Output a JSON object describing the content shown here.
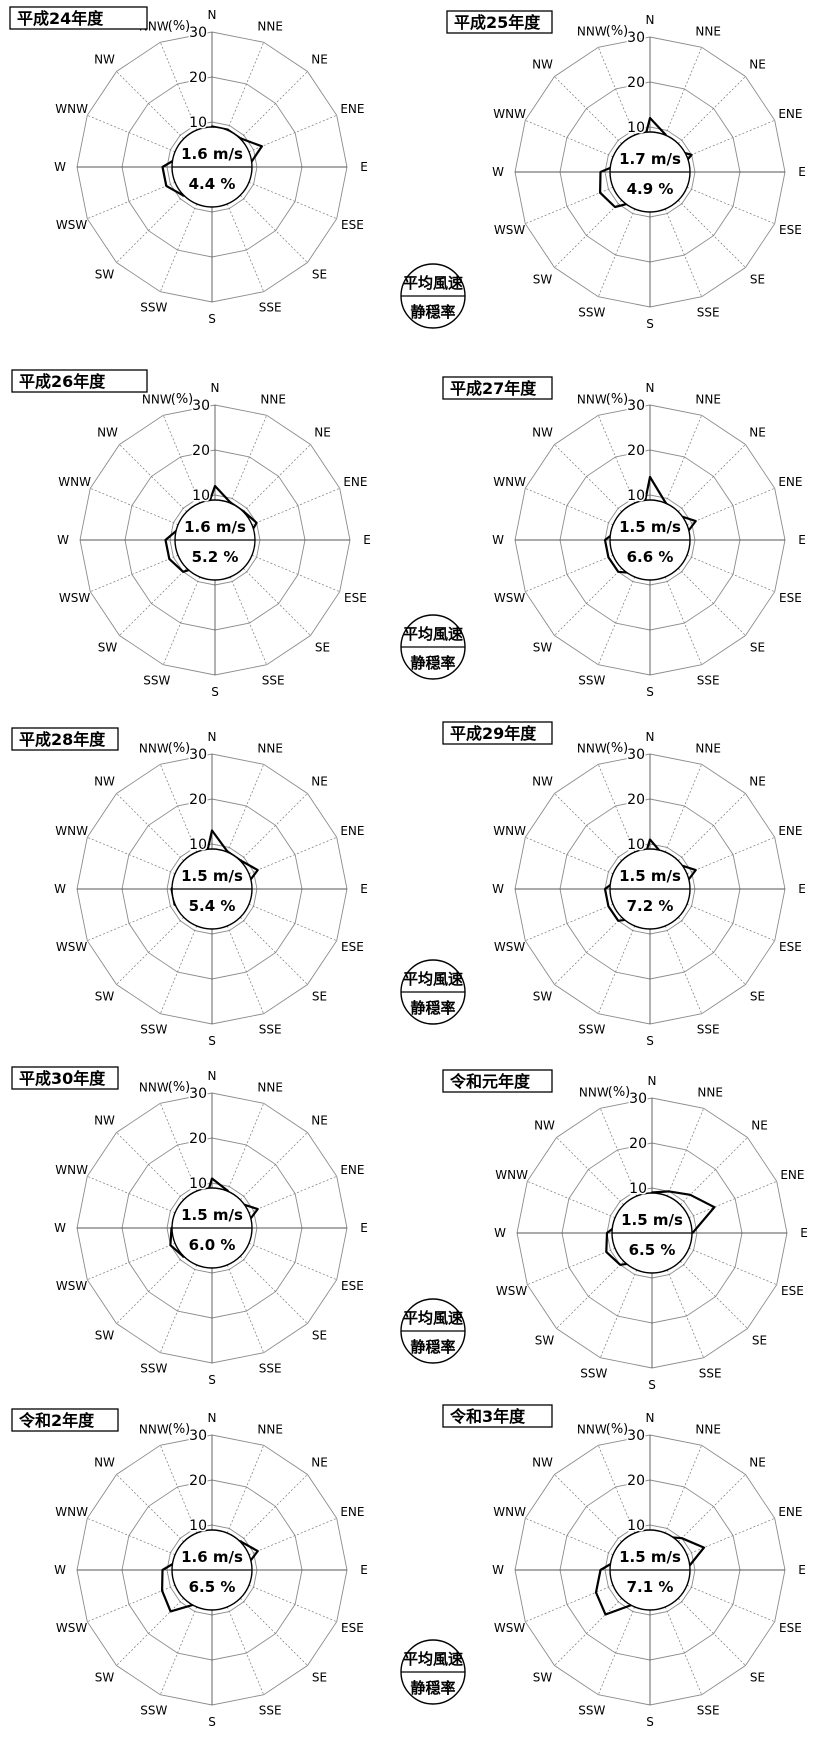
{
  "legend": {
    "top": "平均風速",
    "bottom": "静穏率"
  },
  "chart_data": [
    {
      "type": "radar",
      "title": "平成24年度",
      "unit": "(%)",
      "directions": [
        "N",
        "NNE",
        "NE",
        "ENE",
        "E",
        "ESE",
        "SE",
        "SSE",
        "S",
        "SSW",
        "SW",
        "WSW",
        "W",
        "WNW",
        "NW",
        "NNW"
      ],
      "rings": [
        10,
        20,
        30
      ],
      "ring_labels": [
        "10",
        "20",
        "30"
      ],
      "values": [
        9,
        9,
        9,
        12,
        8,
        7,
        6,
        5,
        4,
        7,
        9,
        11,
        11,
        7,
        5,
        5
      ],
      "wind_speed": "1.6 m/s",
      "calm_rate": "4.4 %"
    },
    {
      "type": "radar",
      "title": "平成25年度",
      "unit": "(%)",
      "directions": [
        "N",
        "NNE",
        "NE",
        "ENE",
        "E",
        "ESE",
        "SE",
        "SSE",
        "S",
        "SSW",
        "SW",
        "WSW",
        "W",
        "WNW",
        "NW",
        "NNW"
      ],
      "rings": [
        10,
        20,
        30
      ],
      "ring_labels": [
        "10",
        "20",
        "30"
      ],
      "values": [
        12,
        9,
        7,
        10,
        6,
        6,
        5,
        4,
        4,
        7,
        11,
        12,
        11,
        6,
        5,
        5
      ],
      "wind_speed": "1.7 m/s",
      "calm_rate": "4.9 %"
    },
    {
      "type": "radar",
      "title": "平成26年度",
      "unit": "(%)",
      "directions": [
        "N",
        "NNE",
        "NE",
        "ENE",
        "E",
        "ESE",
        "SE",
        "SSE",
        "S",
        "SSW",
        "SW",
        "WSW",
        "W",
        "WNW",
        "NW",
        "NNW"
      ],
      "rings": [
        10,
        20,
        30
      ],
      "ring_labels": [
        "10",
        "20",
        "30"
      ],
      "values": [
        12,
        9,
        9,
        10,
        7,
        6,
        5,
        4,
        4,
        6,
        10,
        11,
        11,
        8,
        6,
        6
      ],
      "wind_speed": "1.6 m/s",
      "calm_rate": "5.2 %"
    },
    {
      "type": "radar",
      "title": "平成27年度",
      "unit": "(%)",
      "directions": [
        "N",
        "NNE",
        "NE",
        "ENE",
        "E",
        "ESE",
        "SE",
        "SSE",
        "S",
        "SSW",
        "SW",
        "WSW",
        "W",
        "WNW",
        "NW",
        "NNW"
      ],
      "rings": [
        10,
        20,
        30
      ],
      "ring_labels": [
        "10",
        "20",
        "30"
      ],
      "values": [
        14,
        9,
        8,
        11,
        7,
        5,
        4,
        4,
        4,
        8,
        10,
        10,
        10,
        7,
        5,
        5
      ],
      "wind_speed": "1.5 m/s",
      "calm_rate": "6.6 %"
    },
    {
      "type": "radar",
      "title": "平成28年度",
      "unit": "(%)",
      "directions": [
        "N",
        "NNE",
        "NE",
        "ENE",
        "E",
        "ESE",
        "SE",
        "SSE",
        "S",
        "SSW",
        "SW",
        "WSW",
        "W",
        "WNW",
        "NW",
        "NNW"
      ],
      "rings": [
        10,
        20,
        30
      ],
      "ring_labels": [
        "10",
        "20",
        "30"
      ],
      "values": [
        13,
        9,
        9,
        11,
        7,
        5,
        4,
        4,
        4,
        6,
        8,
        9,
        9,
        8,
        5,
        5
      ],
      "wind_speed": "1.5 m/s",
      "calm_rate": "5.4 %"
    },
    {
      "type": "radar",
      "title": "平成29年度",
      "unit": "(%)",
      "directions": [
        "N",
        "NNE",
        "NE",
        "ENE",
        "E",
        "ESE",
        "SE",
        "SSE",
        "S",
        "SSW",
        "SW",
        "WSW",
        "W",
        "WNW",
        "NW",
        "NNW"
      ],
      "rings": [
        10,
        20,
        30
      ],
      "ring_labels": [
        "10",
        "20",
        "30"
      ],
      "values": [
        11,
        8,
        8,
        11,
        7,
        5,
        4,
        4,
        4,
        7,
        10,
        10,
        10,
        7,
        6,
        5
      ],
      "wind_speed": "1.5 m/s",
      "calm_rate": "7.2 %"
    },
    {
      "type": "radar",
      "title": "平成30年度",
      "unit": "(%)",
      "directions": [
        "N",
        "NNE",
        "NE",
        "ENE",
        "E",
        "ESE",
        "SE",
        "SSE",
        "S",
        "SSW",
        "SW",
        "WSW",
        "W",
        "WNW",
        "NW",
        "NNW"
      ],
      "rings": [
        10,
        20,
        30
      ],
      "ring_labels": [
        "10",
        "20",
        "30"
      ],
      "values": [
        11,
        9,
        8,
        11,
        7,
        6,
        4,
        4,
        4,
        7,
        9,
        10,
        9,
        7,
        5,
        5
      ],
      "wind_speed": "1.5 m/s",
      "calm_rate": "6.0 %"
    },
    {
      "type": "radar",
      "title": "令和元年度",
      "unit": "(%)",
      "directions": [
        "N",
        "NNE",
        "NE",
        "ENE",
        "E",
        "ESE",
        "SE",
        "SSE",
        "S",
        "SSW",
        "SW",
        "WSW",
        "W",
        "WNW",
        "NW",
        "NNW"
      ],
      "rings": [
        10,
        20,
        30
      ],
      "ring_labels": [
        "10",
        "20",
        "30"
      ],
      "values": [
        9,
        10,
        12,
        15,
        9,
        6,
        4,
        4,
        4,
        7,
        10,
        11,
        10,
        7,
        6,
        7
      ],
      "wind_speed": "1.5 m/s",
      "calm_rate": "6.5 %"
    },
    {
      "type": "radar",
      "title": "令和2年度",
      "unit": "(%)",
      "directions": [
        "N",
        "NNE",
        "NE",
        "ENE",
        "E",
        "ESE",
        "SE",
        "SSE",
        "S",
        "SSW",
        "SW",
        "WSW",
        "W",
        "WNW",
        "NW",
        "NNW"
      ],
      "rings": [
        10,
        20,
        30
      ],
      "ring_labels": [
        "10",
        "20",
        "30"
      ],
      "values": [
        8,
        8,
        9,
        11,
        7,
        5,
        4,
        4,
        4,
        8,
        13,
        12,
        11,
        7,
        5,
        5
      ],
      "wind_speed": "1.6 m/s",
      "calm_rate": "6.5 %"
    },
    {
      "type": "radar",
      "title": "令和3年度",
      "unit": "(%)",
      "directions": [
        "N",
        "NNE",
        "NE",
        "ENE",
        "E",
        "ESE",
        "SE",
        "SSE",
        "S",
        "SSW",
        "SW",
        "WSW",
        "W",
        "WNW",
        "NW",
        "NNW"
      ],
      "rings": [
        10,
        20,
        30
      ],
      "ring_labels": [
        "10",
        "20",
        "30"
      ],
      "values": [
        7,
        8,
        10,
        13,
        8,
        6,
        4,
        4,
        5,
        8,
        14,
        13,
        11,
        7,
        5,
        5
      ],
      "wind_speed": "1.5 m/s",
      "calm_rate": "7.1 %"
    }
  ]
}
